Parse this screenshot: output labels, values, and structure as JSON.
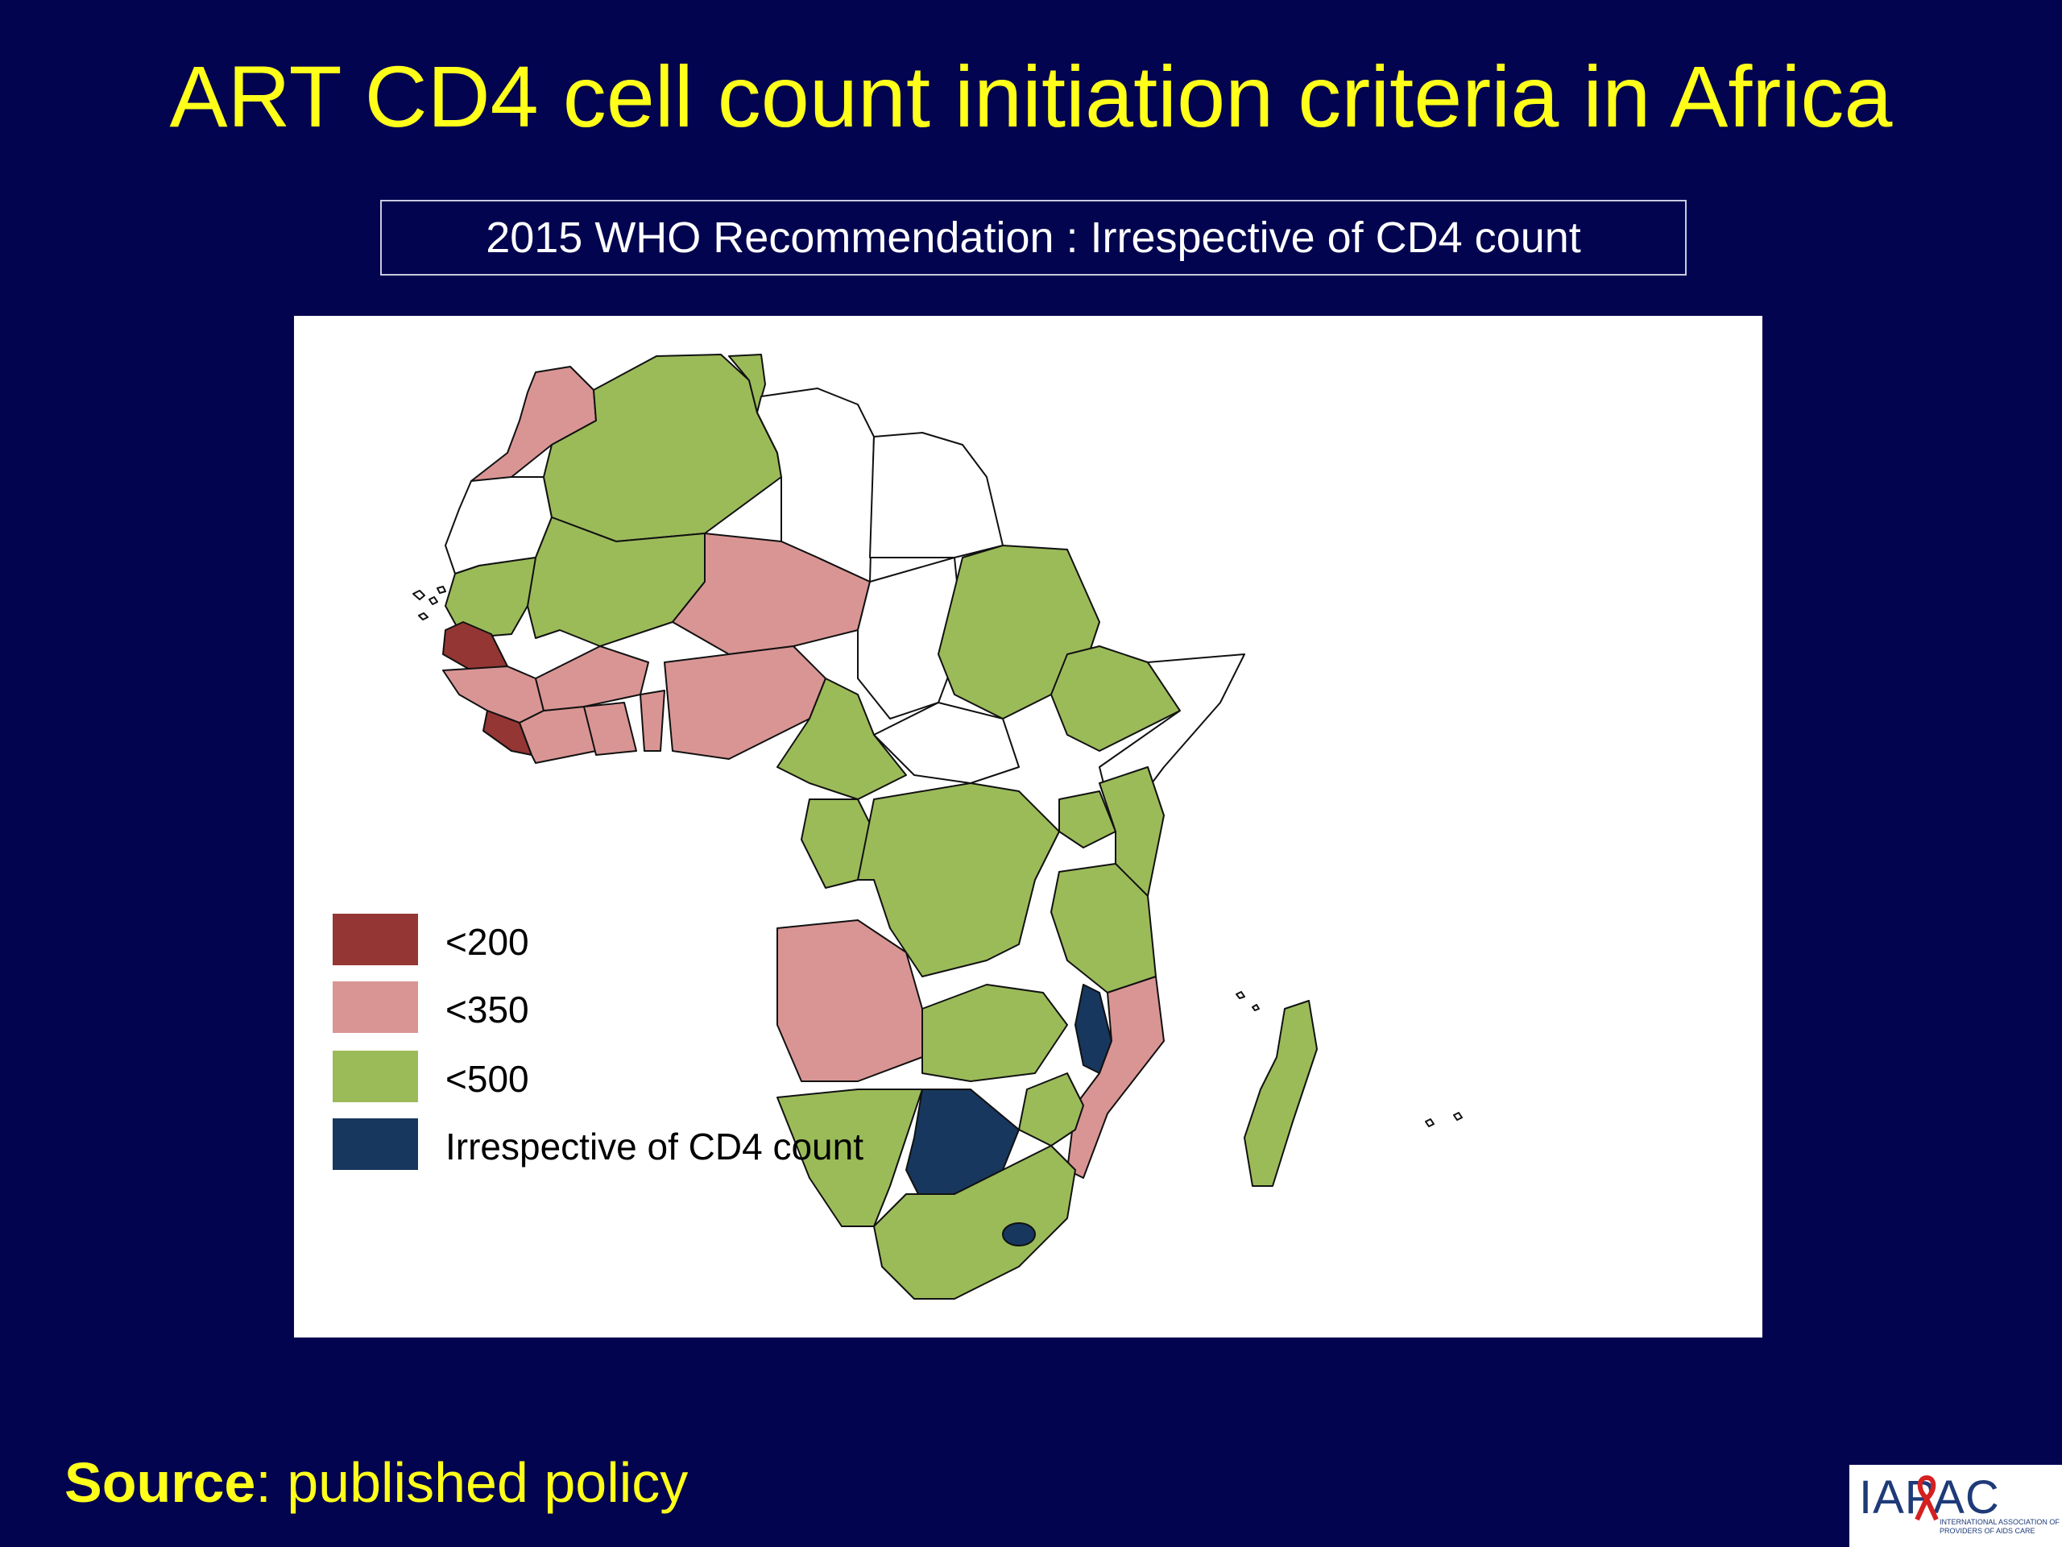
{
  "slide": {
    "title": "ART CD4 cell count initiation criteria in Africa",
    "recommendation": "2015 WHO Recommendation : Irrespective of CD4 count",
    "source_label": "Source",
    "source_text": ": published policy"
  },
  "legend": [
    {
      "label": "<200",
      "color": "#943634"
    },
    {
      "label": "<350",
      "color": "#d99594"
    },
    {
      "label": "<500",
      "color": "#9bbb59"
    },
    {
      "label": "Irrespective of CD4 count",
      "color": "#17375e"
    }
  ],
  "colors": {
    "background": "#03044f",
    "title": "#ffff1a",
    "no_data": "#ffffff",
    "lt200": "#943634",
    "lt350": "#d99594",
    "lt500": "#9bbb59",
    "irrespective": "#17375e"
  },
  "logo": {
    "text": "IAPAC",
    "subtitle": "INTERNATIONAL ASSOCIATION OF PROVIDERS OF AIDS CARE"
  }
}
